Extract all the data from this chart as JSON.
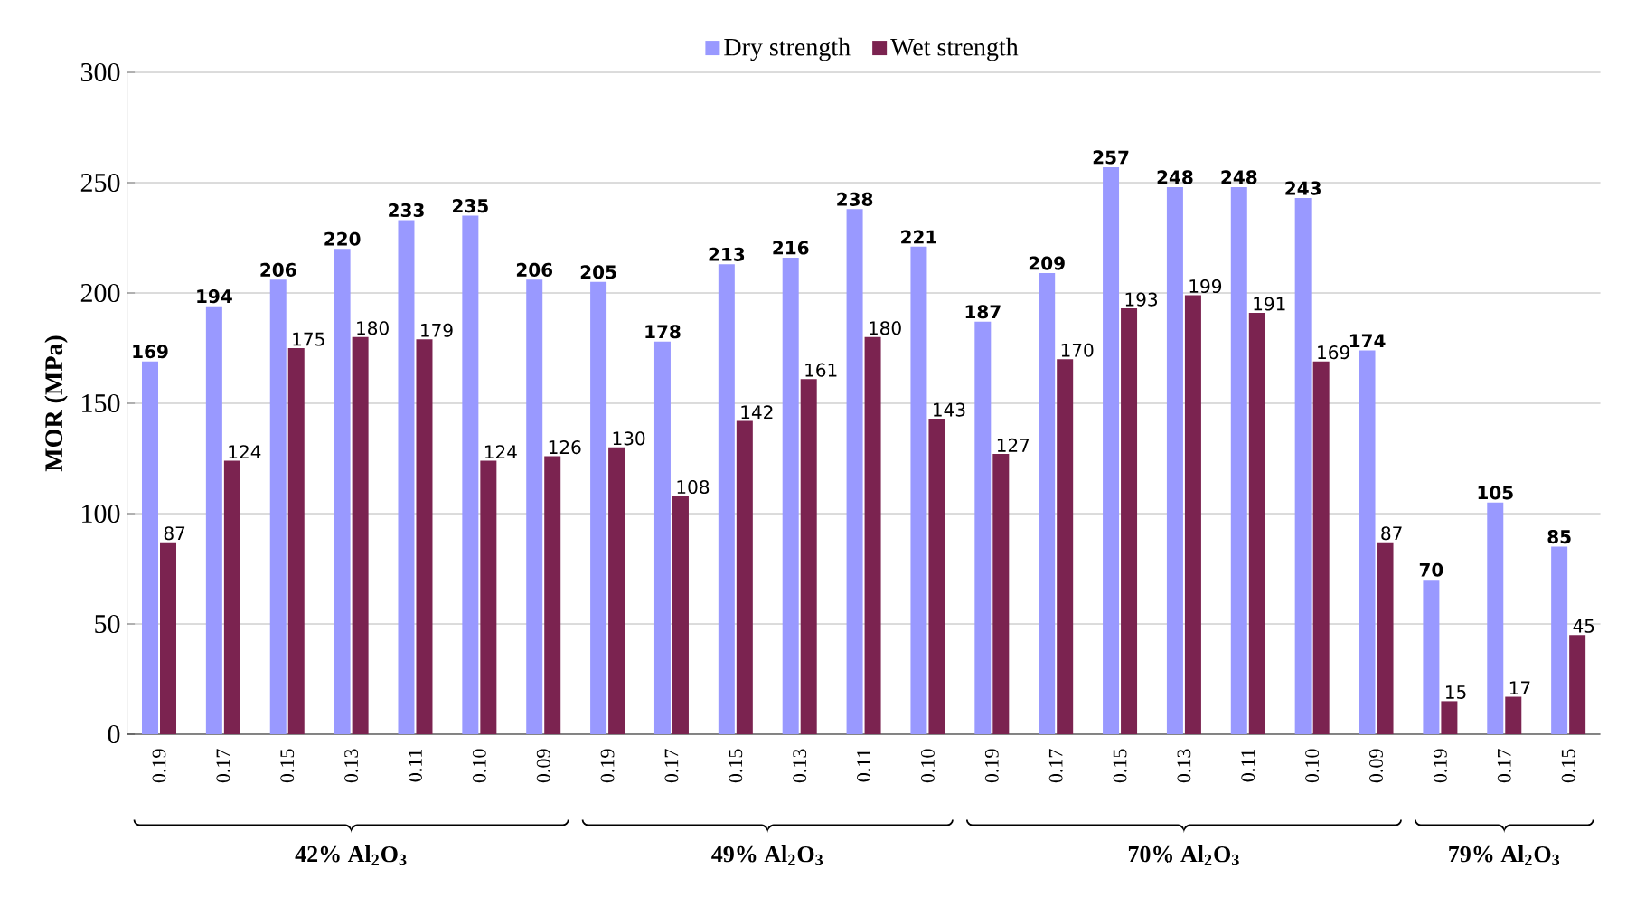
{
  "chart_data": {
    "type": "bar",
    "categories": [
      "0.19",
      "0.17",
      "0.15",
      "0.13",
      "0.11",
      "0.10",
      "0.09",
      "0.19",
      "0.17",
      "0.15",
      "0.13",
      "0.11",
      "0.10",
      "0.19",
      "0.17",
      "0.15",
      "0.13",
      "0.11",
      "0.10",
      "0.09",
      "0.19",
      "0.17",
      "0.15"
    ],
    "series": [
      {
        "name": "Dry strength",
        "color": "#9999ff",
        "values": [
          169,
          194,
          206,
          220,
          233,
          235,
          206,
          205,
          178,
          213,
          216,
          238,
          221,
          187,
          209,
          257,
          248,
          248,
          243,
          174,
          70,
          105,
          85
        ]
      },
      {
        "name": "Wet strength",
        "color": "#7b2350",
        "values": [
          87,
          124,
          175,
          180,
          179,
          124,
          126,
          130,
          108,
          142,
          161,
          180,
          143,
          127,
          170,
          193,
          199,
          191,
          169,
          87,
          15,
          17,
          45
        ]
      }
    ],
    "ylabel": "MOR (MPa)",
    "ylim": [
      0,
      300
    ],
    "yticks": [
      0,
      50,
      100,
      150,
      200,
      250,
      300
    ],
    "grid": "y",
    "legend": "top",
    "data_labels": true,
    "annotations": [
      "42%  Al$_{2}$O$_{3}$",
      "49% Al$_{2}$O$_{3}$",
      "70% Al$_{2}$O$_{3}$",
      "79% Al$_{2}$O$_{3}$"
    ]
  }
}
